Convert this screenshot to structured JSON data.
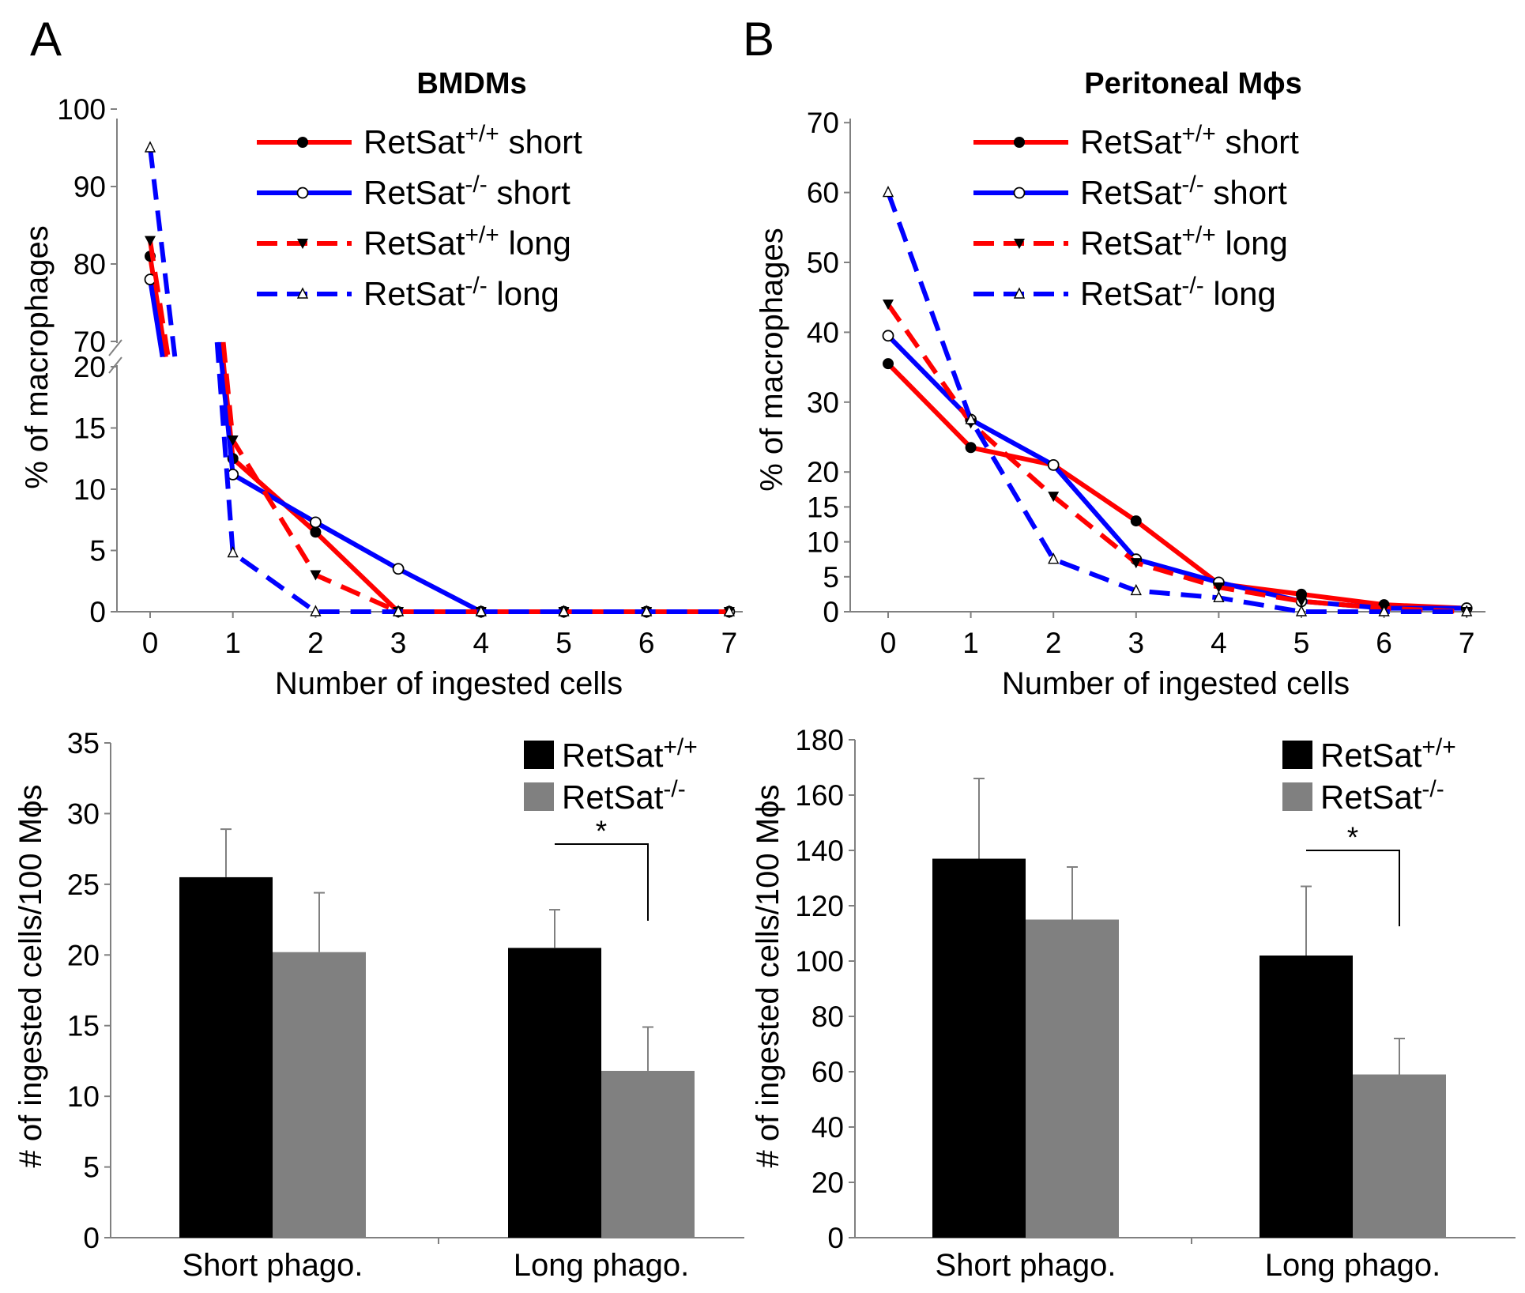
{
  "panels": {
    "a": "A",
    "b": "B"
  },
  "legend": {
    "base": "RetSat",
    "wt_sup": "+/+",
    "ko_sup": "-/-",
    "short": "short",
    "long": "long"
  },
  "chart_data": [
    {
      "type": "line",
      "title": "BMDMs",
      "xlabel": "Number of ingested cells",
      "ylabel": "% of macrophages",
      "x": [
        0,
        1,
        2,
        3,
        4,
        5,
        6,
        7
      ],
      "xticks": [
        "0",
        "1",
        "2",
        "3",
        "4",
        "5",
        "6",
        "7"
      ],
      "ylim": [
        0,
        100
      ],
      "y_axis_break": [
        20,
        70
      ],
      "yticks_lower": [
        "0",
        "5",
        "10",
        "15",
        "20"
      ],
      "yticks_upper": [
        "70",
        "80",
        "90",
        "100"
      ],
      "series": [
        {
          "name": "RetSat+/+ short",
          "color": "#ff0000",
          "dash": "solid",
          "marker": "filled-circle",
          "values": [
            81,
            12.5,
            6.5,
            0,
            0,
            0,
            0,
            0
          ]
        },
        {
          "name": "RetSat-/- short",
          "color": "#0000ff",
          "dash": "solid",
          "marker": "open-circle",
          "values": [
            78,
            11.2,
            7.3,
            3.5,
            0,
            0,
            0,
            0
          ]
        },
        {
          "name": "RetSat+/+ long",
          "color": "#ff0000",
          "dash": "dashed",
          "marker": "filled-triangle-down",
          "values": [
            83,
            14,
            3,
            0,
            0,
            0,
            0,
            0
          ]
        },
        {
          "name": "RetSat-/- long",
          "color": "#0000ff",
          "dash": "dashed",
          "marker": "open-triangle-up",
          "values": [
            95,
            4.8,
            0,
            0,
            0,
            0,
            0,
            0
          ]
        }
      ]
    },
    {
      "type": "line",
      "title": "Peritoneal Mϕs",
      "xlabel": "Number of ingested cells",
      "ylabel": "% of macrophages",
      "x": [
        0,
        1,
        2,
        3,
        4,
        5,
        6,
        7
      ],
      "xticks": [
        "0",
        "1",
        "2",
        "3",
        "4",
        "5",
        "6",
        "7"
      ],
      "ylim": [
        0,
        70
      ],
      "yticks": [
        "0",
        "5",
        "10",
        "15",
        "20",
        "30",
        "40",
        "50",
        "60",
        "70"
      ],
      "series": [
        {
          "name": "RetSat+/+ short",
          "color": "#ff0000",
          "dash": "solid",
          "marker": "filled-circle",
          "values": [
            35.5,
            23.5,
            21,
            13,
            4,
            2.5,
            1,
            0.5
          ]
        },
        {
          "name": "RetSat-/- short",
          "color": "#0000ff",
          "dash": "solid",
          "marker": "open-circle",
          "values": [
            39.5,
            27.5,
            21,
            7.5,
            4.2,
            1.5,
            0.5,
            0.5
          ]
        },
        {
          "name": "RetSat+/+ long",
          "color": "#ff0000",
          "dash": "dashed",
          "marker": "filled-triangle-down",
          "values": [
            44,
            27,
            16.5,
            7,
            3.5,
            1.5,
            0.5,
            0
          ]
        },
        {
          "name": "RetSat-/- long",
          "color": "#0000ff",
          "dash": "dashed",
          "marker": "open-triangle-up",
          "values": [
            60,
            27.5,
            7.5,
            3,
            2,
            0,
            0,
            0
          ]
        }
      ]
    },
    {
      "type": "bar",
      "categories": [
        "Short phago.",
        "Long phago."
      ],
      "ylabel": "# of ingested cells/100 Mϕs",
      "ylim": [
        0,
        35
      ],
      "yticks": [
        "0",
        "5",
        "10",
        "15",
        "20",
        "25",
        "30",
        "35"
      ],
      "series": [
        {
          "name": "RetSat+/+",
          "color": "#000000",
          "values": [
            25.5,
            20.5
          ],
          "errors": [
            3.4,
            2.7
          ]
        },
        {
          "name": "RetSat-/-",
          "color": "#808080",
          "values": [
            20.2,
            11.8
          ],
          "errors": [
            4.2,
            3.1
          ]
        }
      ],
      "significance": "*"
    },
    {
      "type": "bar",
      "categories": [
        "Short phago.",
        "Long phago."
      ],
      "ylabel": "# of ingested cells/100 Mϕs",
      "ylim": [
        0,
        180
      ],
      "yticks": [
        "0",
        "20",
        "40",
        "60",
        "80",
        "100",
        "120",
        "140",
        "160",
        "180"
      ],
      "series": [
        {
          "name": "RetSat+/+",
          "color": "#000000",
          "values": [
            137,
            102
          ],
          "errors": [
            29,
            25
          ]
        },
        {
          "name": "RetSat-/-",
          "color": "#808080",
          "values": [
            115,
            59
          ],
          "errors": [
            19,
            13
          ]
        }
      ],
      "significance": "*"
    }
  ]
}
